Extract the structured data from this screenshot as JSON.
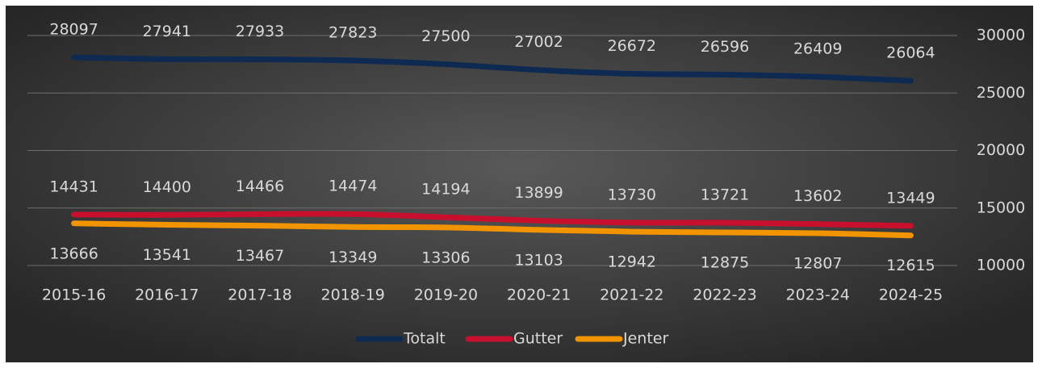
{
  "chart_data": {
    "type": "line",
    "categories": [
      "2015-16",
      "2016-17",
      "2017-18",
      "2018-19",
      "2019-20",
      "2020-21",
      "2021-22",
      "2022-23",
      "2023-24",
      "2024-25"
    ],
    "series": [
      {
        "name": "Totalt",
        "color": "#0e2a52",
        "values": [
          28097,
          27941,
          27933,
          27823,
          27500,
          27002,
          26672,
          26596,
          26409,
          26064
        ]
      },
      {
        "name": "Gutter",
        "color": "#c8102e",
        "values": [
          14431,
          14400,
          14466,
          14474,
          14194,
          13899,
          13730,
          13721,
          13602,
          13449
        ]
      },
      {
        "name": "Jenter",
        "color": "#f29400",
        "values": [
          13666,
          13541,
          13467,
          13349,
          13306,
          13103,
          12942,
          12875,
          12807,
          12615
        ]
      }
    ],
    "ylim": [
      10000,
      30000
    ],
    "yticks": [
      10000,
      15000,
      20000,
      25000,
      30000
    ],
    "y_axis_side": "right",
    "grid": true,
    "legend": "bottom"
  }
}
